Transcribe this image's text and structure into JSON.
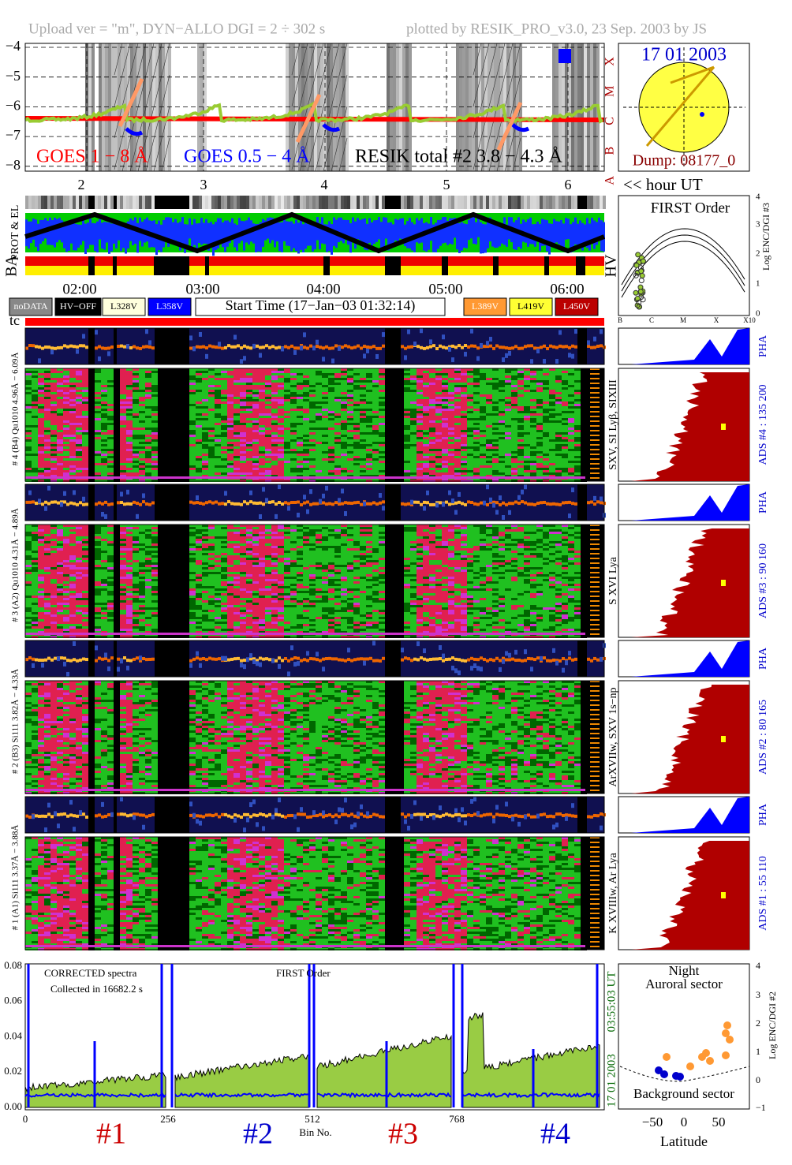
{
  "header": {
    "upload": "Upload ver = \"m\", DYN−ALLO DGI =   2 ÷ 302 s",
    "plotted": "plotted by RESIK_PRO_v3.0, 23 Sep. 2003 by JS"
  },
  "goes": {
    "yticks": [
      "−4",
      "−5",
      "−6",
      "−7",
      "−8"
    ],
    "classes": [
      "X",
      "M",
      "C",
      "B",
      "A"
    ],
    "legend": [
      "GOES 1 − 8 Å",
      "GOES 0.5 − 4 Å",
      "RESIK total #2  3.8 − 4.3 Å"
    ]
  },
  "sun": {
    "date": "17 01 2003",
    "dump": "Dump: 08177_0"
  },
  "hours": {
    "ticks": [
      "2",
      "3",
      "4",
      "5",
      "6"
    ],
    "label": "<< hour UT"
  },
  "side_labels": {
    "prot": "PROT & EL",
    "ba": "BA",
    "hv": "HV",
    "tc": "tc"
  },
  "times": [
    "02:00",
    "03:00",
    "04:00",
    "05:00",
    "06:00"
  ],
  "legend": {
    "nodata": "noDATA",
    "hvoff": "HV−OFF",
    "l328": "L328V",
    "l358": "L358V",
    "start": "Start Time (17−Jan−03 01:32:14)",
    "l389": "L389V",
    "l419": "L419V",
    "l450": "L450V"
  },
  "first_order": {
    "title": "FIRST Order",
    "ylabel": "Log ENC/DGI #3",
    "yticks": [
      "0",
      "1",
      "2",
      "3",
      "4"
    ],
    "xticks": [
      "B",
      "C",
      "M",
      "X",
      "X10"
    ]
  },
  "channels": [
    {
      "label": "# 4 (B4) Qu1010 4.96Å − 6.09Å",
      "lines": "SXV, SI Lyβ, SIXIII",
      "pha": "PHA",
      "ads": "ADS #4 :   135 200"
    },
    {
      "label": "# 3 (A2) Qu1010 4.31Å − 4.89Å",
      "lines": "S XVI Lya",
      "pha": "PHA",
      "ads": "ADS #3 :    90 160"
    },
    {
      "label": "# 2 (B3) Si111 3.82Å − 4.33Å",
      "lines": "ArXVIIw, SXV 1s−np",
      "pha": "PHA",
      "ads": "ADS #2 :    80 165"
    },
    {
      "label": "# 1 (A1) Si111 3.37Å − 3.88Å",
      "lines": "K XVIIIw, Ar Lya",
      "pha": "PHA",
      "ads": "ADS #1 :    55 110"
    }
  ],
  "spectrum": {
    "yticks": [
      "0.00",
      "0.02",
      "0.04",
      "0.06",
      "0.08"
    ],
    "xticks": [
      "0",
      "256",
      "512",
      "768"
    ],
    "xlabel": "Bin No.",
    "note1": "CORRECTED spectra",
    "note2": "Collected in 16682.2 s",
    "order": "FIRST Order",
    "time": "03:55:03 UT",
    "date": "17 01 2003",
    "sections": [
      "#1",
      "#2",
      "#3",
      "#4"
    ]
  },
  "latitude": {
    "night": "Night",
    "auroral": "Auroral sector",
    "background": "Background sector",
    "ylabel": "Log ENC/DGI #2",
    "yticks": [
      "−1",
      "0",
      "1",
      "2",
      "3",
      "4"
    ],
    "xticks": [
      "−50",
      "0",
      "50"
    ],
    "xlabel": "Latitude"
  }
}
